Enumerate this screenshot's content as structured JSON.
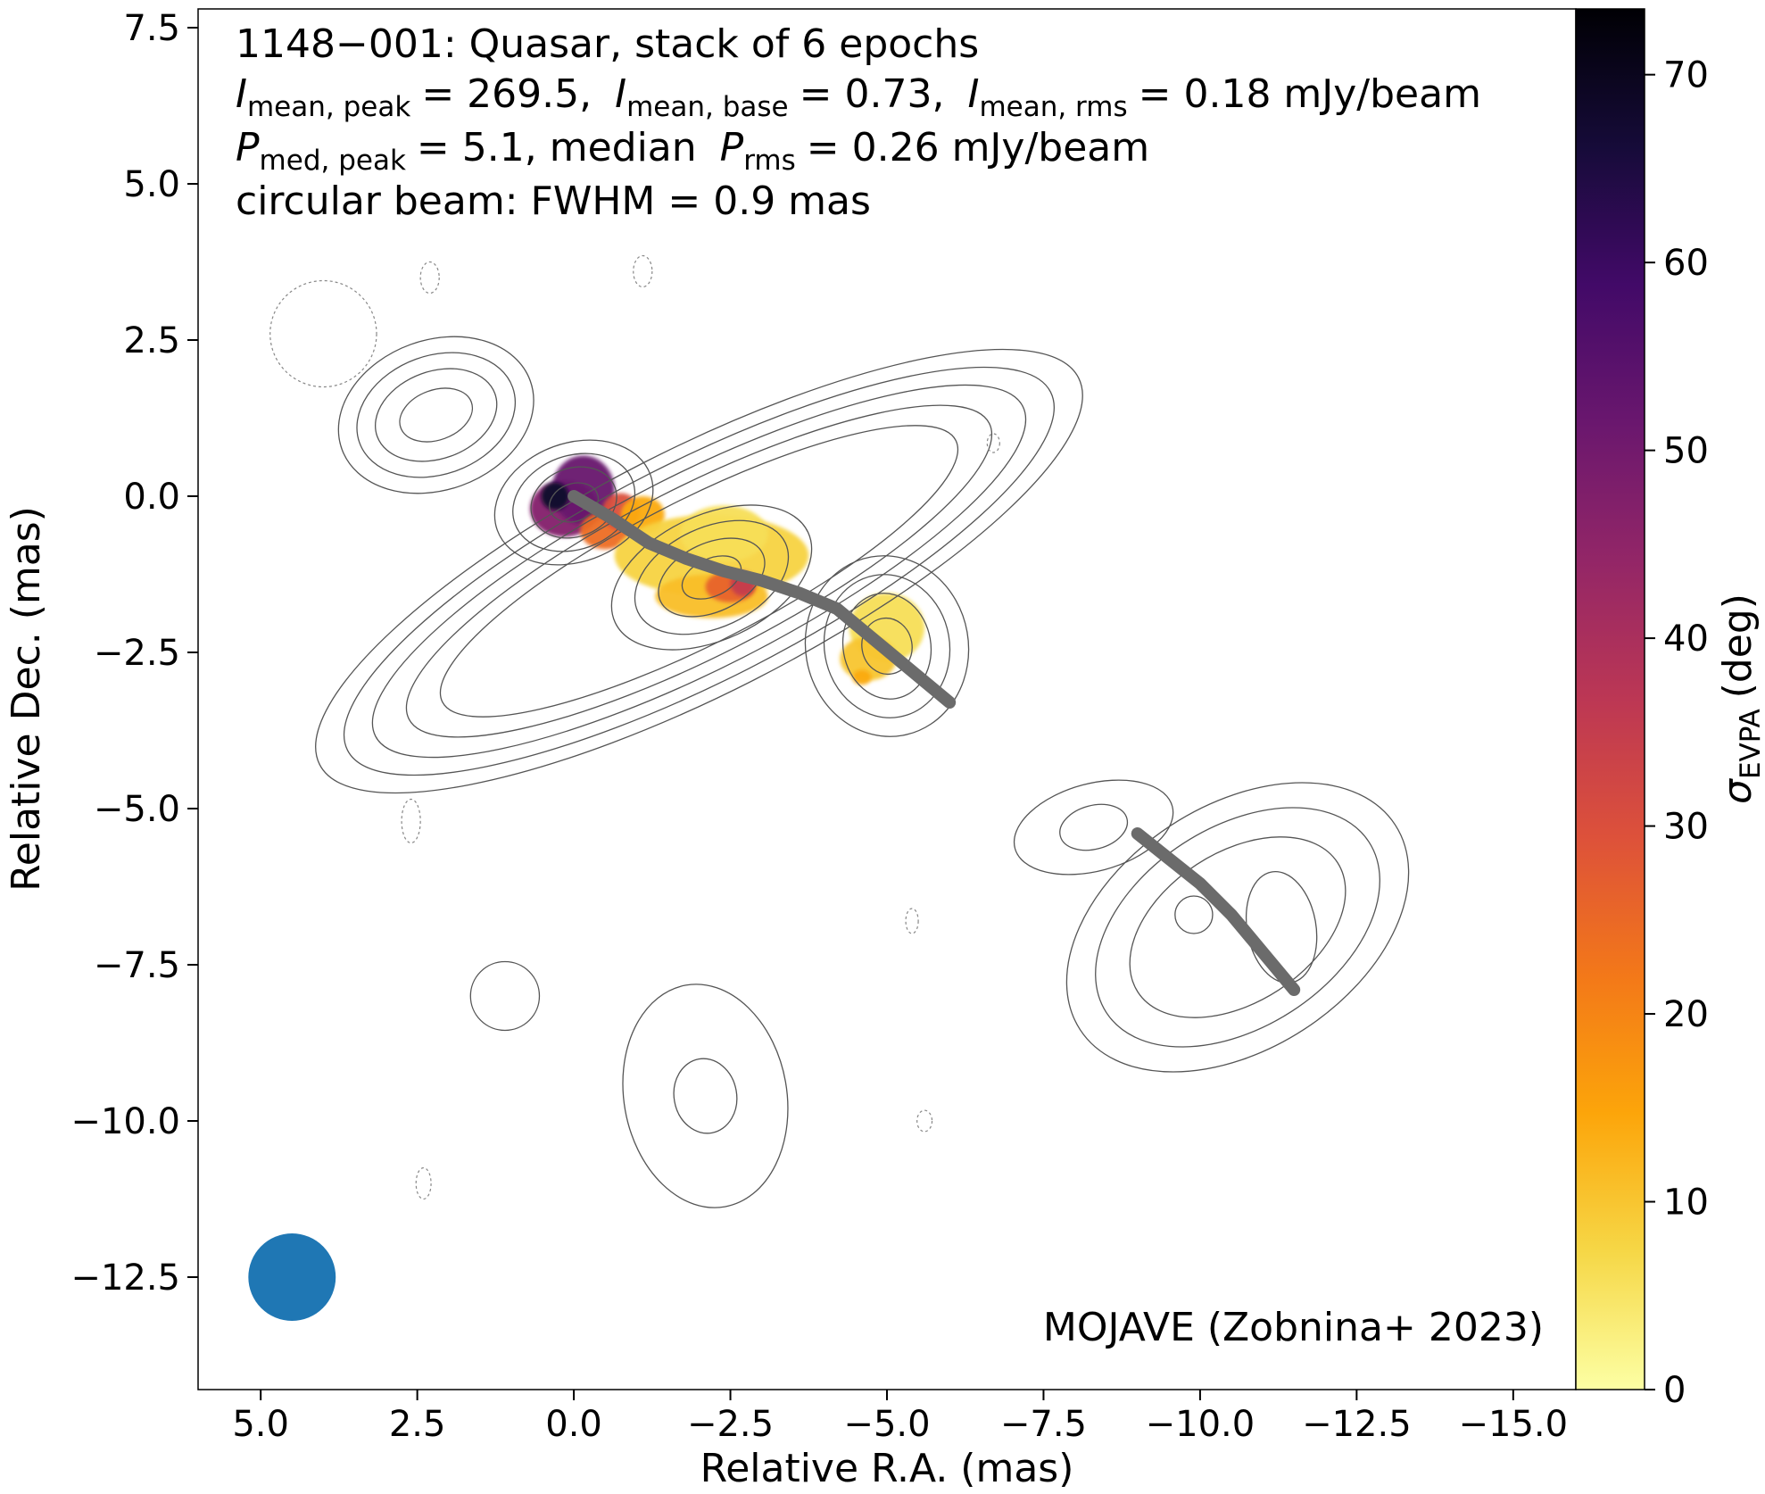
{
  "chart_data": {
    "type": "heatmap",
    "title_lines": [
      "1148−001: Quasar, stack of 6 epochs",
      "= 269.5,",
      "= 0.73,",
      "= 0.18 mJy/beam",
      "= 5.1, median",
      "= 0.26 mJy/beam",
      "circular beam: FWHM = 0.9 mas"
    ],
    "symbols": {
      "I": "I",
      "P": "P",
      "sub_mean_peak": "mean, peak",
      "sub_mean_base": "mean, base",
      "sub_mean_rms": "mean, rms",
      "sub_med_peak": "med, peak",
      "sub_rms": "rms",
      "sigma": "σ",
      "sub_evpa": "EVPA"
    },
    "xlabel": "Relative R.A. (mas)",
    "ylabel": "Relative Dec. (mas)",
    "colorbar_label_suffix": "(deg)",
    "credit": "MOJAVE (Zobnina+ 2023)",
    "xlim": [
      6.0,
      -16.0
    ],
    "ylim": [
      -14.3,
      7.8
    ],
    "x_ticks": [
      5.0,
      2.5,
      0.0,
      -2.5,
      -5.0,
      -7.5,
      -10.0,
      -12.5,
      -15.0
    ],
    "x_tick_labels": [
      "5.0",
      "2.5",
      "0.0",
      "−2.5",
      "−5.0",
      "−7.5",
      "−10.0",
      "−12.5",
      "−15.0"
    ],
    "y_ticks": [
      7.5,
      5.0,
      2.5,
      0.0,
      -2.5,
      -5.0,
      -7.5,
      -10.0,
      -12.5
    ],
    "y_tick_labels": [
      "7.5",
      "5.0",
      "2.5",
      "0.0",
      "−2.5",
      "−5.0",
      "−7.5",
      "−10.0",
      "−12.5"
    ],
    "colorbar": {
      "range": [
        0,
        73.5
      ],
      "ticks": [
        0,
        10,
        20,
        30,
        40,
        50,
        60,
        70
      ],
      "tick_labels": [
        "0",
        "10",
        "20",
        "30",
        "40",
        "50",
        "60",
        "70"
      ],
      "colormap": "inferno_r",
      "stops": [
        "#fcffa4",
        "#f6d746",
        "#fca50a",
        "#f37819",
        "#dd513a",
        "#bc3754",
        "#932667",
        "#6a176e",
        "#420a68",
        "#160b39",
        "#000004"
      ]
    },
    "beam": {
      "x": 4.5,
      "y": -12.5,
      "fwhm_mas": 0.9,
      "color": "#1f77b4"
    },
    "ridge_lines": [
      [
        [
          0.0,
          0.0
        ],
        [
          -0.6,
          -0.35
        ],
        [
          -1.2,
          -0.75
        ],
        [
          -1.8,
          -1.0
        ],
        [
          -2.4,
          -1.2
        ],
        [
          -3.0,
          -1.35
        ],
        [
          -3.6,
          -1.55
        ],
        [
          -4.2,
          -1.8
        ],
        [
          -4.8,
          -2.3
        ],
        [
          -5.4,
          -2.8
        ],
        [
          -6.0,
          -3.3
        ]
      ],
      [
        [
          -9.0,
          -5.4
        ],
        [
          -9.5,
          -5.8
        ],
        [
          -10.0,
          -6.2
        ],
        [
          -10.5,
          -6.7
        ],
        [
          -11.0,
          -7.3
        ],
        [
          -11.5,
          -7.9
        ]
      ]
    ],
    "contour_groups": [
      {
        "cx": -2.0,
        "cy": -1.2,
        "rx": [
          6.8,
          6.3,
          5.8,
          5.2,
          4.6
        ],
        "ry": [
          1.95,
          1.75,
          1.55,
          1.35,
          1.15
        ],
        "angle": -27
      },
      {
        "cx": 2.2,
        "cy": 1.3,
        "rx": [
          1.6,
          1.3,
          1.0,
          0.6
        ],
        "ry": [
          1.2,
          0.95,
          0.7,
          0.4
        ],
        "angle": -20
      },
      {
        "cx": 0.0,
        "cy": -0.1,
        "rx": [
          1.3,
          1.0,
          0.7,
          0.4
        ],
        "ry": [
          0.95,
          0.75,
          0.55,
          0.3
        ],
        "angle": -20
      },
      {
        "cx": -2.2,
        "cy": -1.3,
        "rx": [
          1.7,
          1.3,
          0.9,
          0.5
        ],
        "ry": [
          1.0,
          0.8,
          0.55,
          0.3
        ],
        "angle": -25
      },
      {
        "cx": -5.0,
        "cy": -2.4,
        "rx": [
          1.3,
          1.0,
          0.7,
          0.4
        ],
        "ry": [
          1.45,
          1.15,
          0.85,
          0.45
        ],
        "angle": -10
      },
      {
        "cx": -10.6,
        "cy": -6.9,
        "rx": [
          3.0,
          2.5,
          1.9
        ],
        "ry": [
          1.95,
          1.6,
          1.2
        ],
        "angle": -33
      },
      {
        "cx": -8.3,
        "cy": -5.3,
        "rx": [
          1.3,
          0.55
        ],
        "ry": [
          0.7,
          0.35
        ],
        "angle": -15
      },
      {
        "cx": -11.3,
        "cy": -6.9,
        "rx": [
          0.55
        ],
        "ry": [
          0.9
        ],
        "angle": -10
      },
      {
        "cx": -9.9,
        "cy": -6.7,
        "rx": [
          0.3
        ],
        "ry": [
          0.3
        ],
        "angle": 0
      },
      {
        "cx": -2.1,
        "cy": -9.6,
        "rx": [
          1.3,
          0.5
        ],
        "ry": [
          1.8,
          0.6
        ],
        "angle": -10
      },
      {
        "cx": 1.1,
        "cy": -8.0,
        "rx": [
          0.55
        ],
        "ry": [
          0.55
        ],
        "angle": 0
      }
    ],
    "negative_contours": [
      {
        "cx": 4.0,
        "cy": 2.6,
        "rx": 0.85,
        "ry": 0.85
      },
      {
        "cx": 2.3,
        "cy": 3.5,
        "rx": 0.15,
        "ry": 0.25
      },
      {
        "cx": -1.1,
        "cy": 3.6,
        "rx": 0.15,
        "ry": 0.25
      },
      {
        "cx": -6.7,
        "cy": 0.85,
        "rx": 0.1,
        "ry": 0.15
      },
      {
        "cx": 2.6,
        "cy": -5.2,
        "rx": 0.15,
        "ry": 0.35
      },
      {
        "cx": -5.4,
        "cy": -6.8,
        "rx": 0.1,
        "ry": 0.2
      },
      {
        "cx": -5.6,
        "cy": -10.0,
        "rx": 0.12,
        "ry": 0.17
      },
      {
        "cx": 2.4,
        "cy": -11.0,
        "rx": 0.12,
        "ry": 0.25
      }
    ],
    "sigma_evpa_blobs": [
      {
        "x": 0.15,
        "y": -0.2,
        "rx": 0.55,
        "ry": 0.45,
        "value": 47
      },
      {
        "x": -0.15,
        "y": 0.1,
        "rx": 0.5,
        "ry": 0.55,
        "value": 52
      },
      {
        "x": 0.3,
        "y": 0.0,
        "rx": 0.22,
        "ry": 0.22,
        "value": 68
      },
      {
        "x": -0.5,
        "y": -0.55,
        "rx": 0.4,
        "ry": 0.3,
        "value": 24
      },
      {
        "x": -0.75,
        "y": -0.25,
        "rx": 0.3,
        "ry": 0.3,
        "value": 30
      },
      {
        "x": -1.1,
        "y": -0.3,
        "rx": 0.35,
        "ry": 0.3,
        "value": 14
      },
      {
        "x": -2.2,
        "y": -0.95,
        "rx": 1.55,
        "ry": 0.65,
        "value": 8
      },
      {
        "x": -2.4,
        "y": -0.6,
        "rx": 0.7,
        "ry": 0.45,
        "value": 6
      },
      {
        "x": -2.2,
        "y": -1.6,
        "rx": 0.9,
        "ry": 0.35,
        "value": 11
      },
      {
        "x": -2.5,
        "y": -1.45,
        "rx": 0.4,
        "ry": 0.25,
        "value": 26
      },
      {
        "x": -2.7,
        "y": -1.4,
        "rx": 0.2,
        "ry": 0.2,
        "value": 35
      },
      {
        "x": -5.0,
        "y": -2.1,
        "rx": 0.6,
        "ry": 0.55,
        "value": 6
      },
      {
        "x": -4.7,
        "y": -2.6,
        "rx": 0.45,
        "ry": 0.35,
        "value": 10
      },
      {
        "x": -4.6,
        "y": -2.9,
        "rx": 0.15,
        "ry": 0.12,
        "value": 14
      }
    ]
  }
}
